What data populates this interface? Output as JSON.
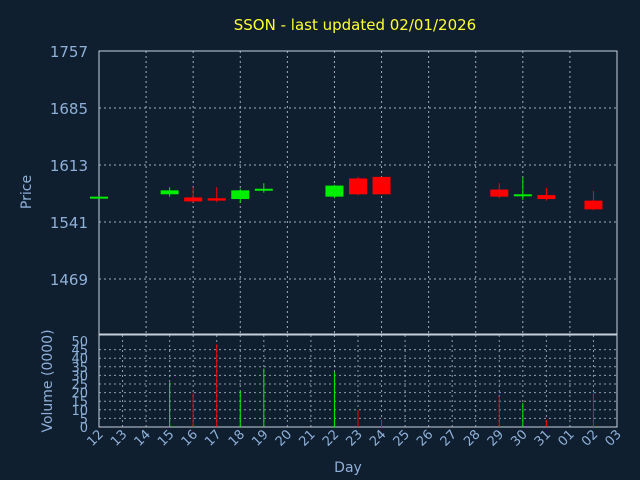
{
  "chart_data": [
    {
      "type": "candlestick",
      "title": "SSON - last updated 02/01/2026",
      "ylabel": "Price",
      "ylim": [
        1469,
        1757
      ],
      "yticks": [
        "1757",
        "1685",
        "1613",
        "1541",
        "1469"
      ],
      "grid": true,
      "colors": {
        "up": "#00ee00",
        "down": "#ff0000",
        "background": "#0f1f30",
        "grid": "#c8d0dc",
        "text": "#8fb0d8",
        "title": "#ffff33"
      },
      "x_categories": [
        "12",
        "13",
        "14",
        "15",
        "16",
        "17",
        "18",
        "19",
        "20",
        "21",
        "22",
        "23",
        "24",
        "25",
        "26",
        "27",
        "28",
        "29",
        "30",
        "31",
        "01",
        "02",
        "03"
      ],
      "candles": [
        {
          "day": "12",
          "open": 1573,
          "high": 1573,
          "low": 1572,
          "close": 1573
        },
        {
          "day": "15",
          "open": 1576,
          "high": 1585,
          "low": 1573,
          "close": 1581
        },
        {
          "day": "16",
          "open": 1572,
          "high": 1585,
          "low": 1566,
          "close": 1567
        },
        {
          "day": "17",
          "open": 1571,
          "high": 1585,
          "low": 1566,
          "close": 1568
        },
        {
          "day": "18",
          "open": 1570,
          "high": 1583,
          "low": 1565,
          "close": 1581
        },
        {
          "day": "19",
          "open": 1581,
          "high": 1590,
          "low": 1578,
          "close": 1583
        },
        {
          "day": "22",
          "open": 1573,
          "high": 1588,
          "low": 1571,
          "close": 1587
        },
        {
          "day": "23",
          "open": 1596,
          "high": 1598,
          "low": 1575,
          "close": 1576
        },
        {
          "day": "24",
          "open": 1598,
          "high": 1598,
          "low": 1576,
          "close": 1576
        },
        {
          "day": "29",
          "open": 1582,
          "high": 1590,
          "low": 1571,
          "close": 1573
        },
        {
          "day": "30",
          "open": 1574,
          "high": 1597,
          "low": 1569,
          "close": 1576
        },
        {
          "day": "31",
          "open": 1575,
          "high": 1584,
          "low": 1568,
          "close": 1570
        },
        {
          "day": "02",
          "open": 1568,
          "high": 1580,
          "low": 1556,
          "close": 1557
        }
      ]
    },
    {
      "type": "bar",
      "ylabel": "Volume (0000)",
      "xlabel": "Day",
      "ylim": [
        0,
        50
      ],
      "yticks": [
        "50",
        "45",
        "40",
        "35",
        "30",
        "25",
        "20",
        "15",
        "10",
        "5",
        "0"
      ],
      "x_categories": [
        "12",
        "13",
        "14",
        "15",
        "16",
        "17",
        "18",
        "19",
        "20",
        "21",
        "22",
        "23",
        "24",
        "25",
        "26",
        "27",
        "28",
        "29",
        "30",
        "31",
        "01",
        "02",
        "03"
      ],
      "bars": [
        {
          "day": "15",
          "value": 26,
          "color": "#00ee00"
        },
        {
          "day": "16",
          "value": 20,
          "color": "#ff0000"
        },
        {
          "day": "17",
          "value": 48,
          "color": "#ff0000"
        },
        {
          "day": "18",
          "value": 21,
          "color": "#00ee00"
        },
        {
          "day": "19",
          "value": 34,
          "color": "#00ee00"
        },
        {
          "day": "22",
          "value": 32,
          "color": "#00ee00"
        },
        {
          "day": "23",
          "value": 10,
          "color": "#ff0000"
        },
        {
          "day": "24",
          "value": 4,
          "color": "#ff0000"
        },
        {
          "day": "29",
          "value": 18,
          "color": "#ff0000"
        },
        {
          "day": "30",
          "value": 14,
          "color": "#00ee00"
        },
        {
          "day": "31",
          "value": 4,
          "color": "#ff0000"
        },
        {
          "day": "02",
          "value": 20,
          "color": "#ff0000"
        }
      ]
    }
  ]
}
